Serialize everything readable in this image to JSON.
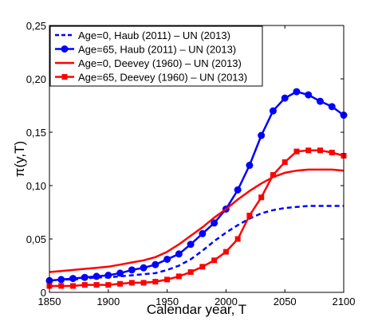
{
  "chart_data": {
    "type": "line",
    "xlabel": "Calendar year, T",
    "ylabel": "π(y,T)",
    "xlim": [
      1850,
      2100
    ],
    "ylim": [
      0,
      0.25
    ],
    "xticks": [
      1850,
      1900,
      1950,
      2000,
      2050,
      2100
    ],
    "xtick_labels": [
      "1850",
      "1900",
      "1950",
      "2000",
      "2050",
      "2100"
    ],
    "yticks": [
      0,
      0.05,
      0.1,
      0.15,
      0.2,
      0.25
    ],
    "ytick_labels": [
      "0",
      "0,05",
      "0,10",
      "0,15",
      "0,20",
      "0,25"
    ],
    "grid": false,
    "legend_position": "top-left",
    "series": [
      {
        "name": "Age=0,   Haub (2011) – UN (2013)",
        "color": "#0000ff",
        "style": "dashed",
        "marker": "none",
        "points": [
          [
            1850,
            0.011
          ],
          [
            1860,
            0.012
          ],
          [
            1870,
            0.012
          ],
          [
            1880,
            0.013
          ],
          [
            1890,
            0.014
          ],
          [
            1900,
            0.014
          ],
          [
            1910,
            0.015
          ],
          [
            1920,
            0.016
          ],
          [
            1930,
            0.017
          ],
          [
            1940,
            0.018
          ],
          [
            1950,
            0.021
          ],
          [
            1960,
            0.025
          ],
          [
            1970,
            0.031
          ],
          [
            1980,
            0.039
          ],
          [
            1990,
            0.048
          ],
          [
            2000,
            0.056
          ],
          [
            2010,
            0.063
          ],
          [
            2020,
            0.069
          ],
          [
            2030,
            0.074
          ],
          [
            2040,
            0.077
          ],
          [
            2050,
            0.079
          ],
          [
            2060,
            0.08
          ],
          [
            2070,
            0.081
          ],
          [
            2080,
            0.081
          ],
          [
            2090,
            0.081
          ],
          [
            2100,
            0.081
          ]
        ]
      },
      {
        "name": "Age=65, Haub (2011) – UN (2013)",
        "color": "#0000ff",
        "style": "solid",
        "marker": "circle",
        "points": [
          [
            1850,
            0.011
          ],
          [
            1860,
            0.012
          ],
          [
            1870,
            0.013
          ],
          [
            1880,
            0.014
          ],
          [
            1890,
            0.015
          ],
          [
            1900,
            0.016
          ],
          [
            1910,
            0.018
          ],
          [
            1920,
            0.021
          ],
          [
            1930,
            0.023
          ],
          [
            1940,
            0.026
          ],
          [
            1950,
            0.031
          ],
          [
            1960,
            0.036
          ],
          [
            1970,
            0.045
          ],
          [
            1980,
            0.055
          ],
          [
            1990,
            0.065
          ],
          [
            2000,
            0.078
          ],
          [
            2010,
            0.096
          ],
          [
            2020,
            0.119
          ],
          [
            2030,
            0.147
          ],
          [
            2040,
            0.17
          ],
          [
            2050,
            0.182
          ],
          [
            2060,
            0.188
          ],
          [
            2070,
            0.185
          ],
          [
            2080,
            0.179
          ],
          [
            2090,
            0.174
          ],
          [
            2100,
            0.166
          ]
        ]
      },
      {
        "name": "Age=0,   Deevey (1960) – UN (2013)",
        "color": "#ff0000",
        "style": "solid",
        "marker": "none",
        "points": [
          [
            1850,
            0.019
          ],
          [
            1860,
            0.02
          ],
          [
            1870,
            0.021
          ],
          [
            1880,
            0.022
          ],
          [
            1890,
            0.023
          ],
          [
            1900,
            0.024
          ],
          [
            1910,
            0.026
          ],
          [
            1920,
            0.028
          ],
          [
            1930,
            0.03
          ],
          [
            1940,
            0.033
          ],
          [
            1950,
            0.038
          ],
          [
            1960,
            0.045
          ],
          [
            1970,
            0.053
          ],
          [
            1980,
            0.061
          ],
          [
            1990,
            0.07
          ],
          [
            2000,
            0.078
          ],
          [
            2010,
            0.087
          ],
          [
            2020,
            0.095
          ],
          [
            2030,
            0.102
          ],
          [
            2040,
            0.108
          ],
          [
            2050,
            0.112
          ],
          [
            2060,
            0.114
          ],
          [
            2070,
            0.115
          ],
          [
            2080,
            0.115
          ],
          [
            2090,
            0.115
          ],
          [
            2100,
            0.114
          ]
        ]
      },
      {
        "name": "Age=65, Deevey (1960) – UN (2013)",
        "color": "#ff0000",
        "style": "solid",
        "marker": "square",
        "points": [
          [
            1850,
            0.006
          ],
          [
            1860,
            0.006
          ],
          [
            1870,
            0.006
          ],
          [
            1880,
            0.007
          ],
          [
            1890,
            0.007
          ],
          [
            1900,
            0.007
          ],
          [
            1910,
            0.008
          ],
          [
            1920,
            0.009
          ],
          [
            1930,
            0.009
          ],
          [
            1940,
            0.01
          ],
          [
            1950,
            0.012
          ],
          [
            1960,
            0.015
          ],
          [
            1970,
            0.019
          ],
          [
            1980,
            0.024
          ],
          [
            1990,
            0.03
          ],
          [
            2000,
            0.038
          ],
          [
            2010,
            0.05
          ],
          [
            2020,
            0.072
          ],
          [
            2030,
            0.089
          ],
          [
            2040,
            0.11
          ],
          [
            2050,
            0.122
          ],
          [
            2060,
            0.132
          ],
          [
            2070,
            0.133
          ],
          [
            2080,
            0.133
          ],
          [
            2090,
            0.131
          ],
          [
            2100,
            0.128
          ]
        ]
      }
    ]
  }
}
